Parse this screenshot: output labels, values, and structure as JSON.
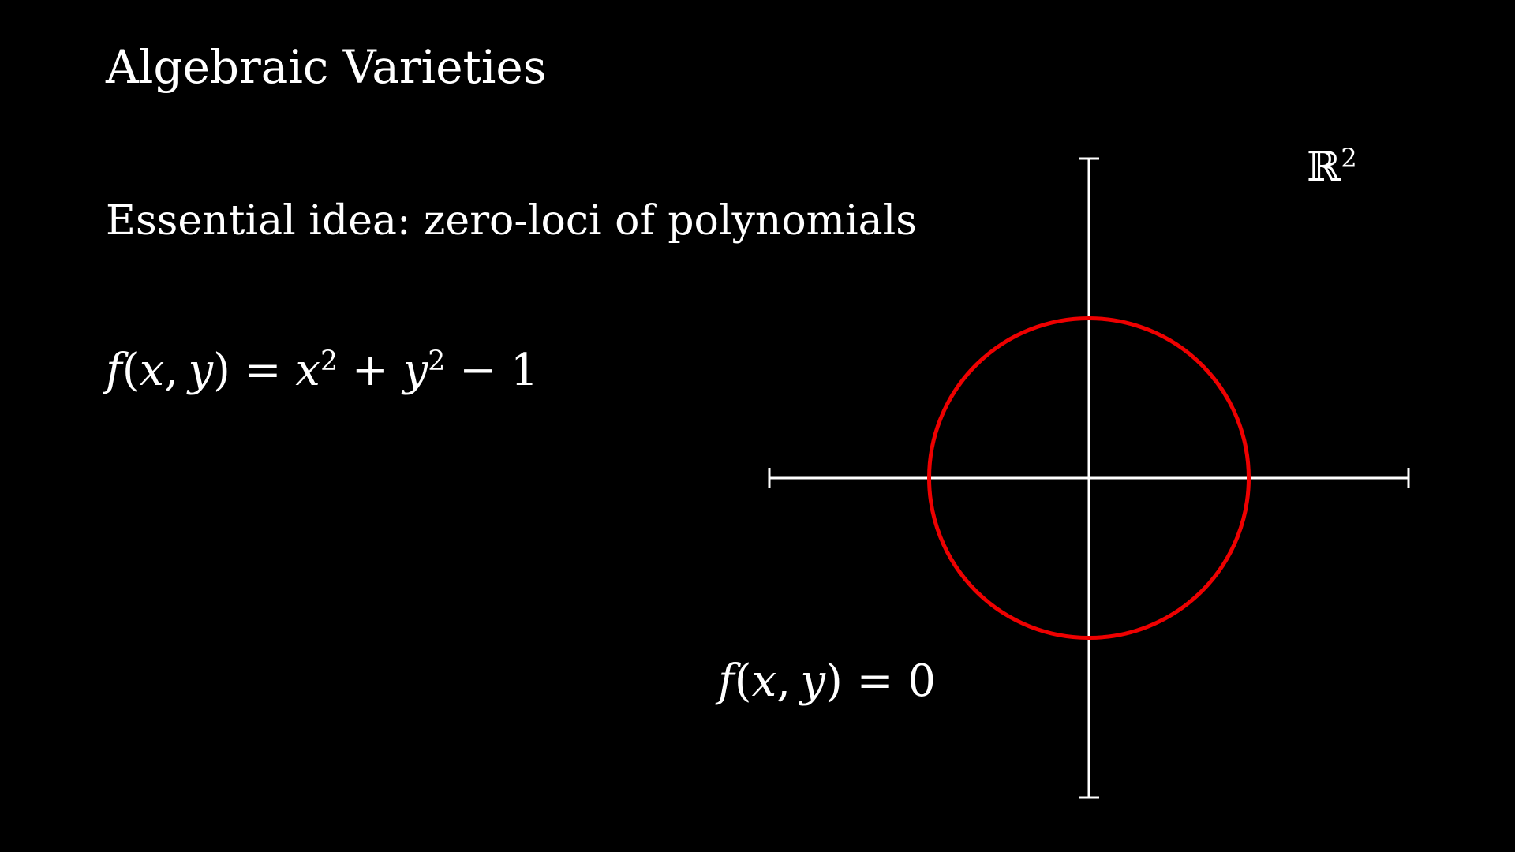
{
  "slide": {
    "title": "Algebraic Varieties",
    "subtitle": "Essential idea: zero-loci of polynomials"
  },
  "equation": {
    "func": "f",
    "open": "(",
    "var_x": "x",
    "comma": ",",
    "var_y": "y",
    "close": ")",
    "eq": "=",
    "term1": "x",
    "exp1": "2",
    "plus": "+",
    "term2": "y",
    "exp2": "2",
    "minus": "−",
    "constant": "1"
  },
  "zero_locus": {
    "func": "f",
    "open": "(",
    "var_x": "x",
    "comma": ",",
    "var_y": "y",
    "close": ")",
    "eq": "=",
    "value": "0"
  },
  "space": {
    "symbol": "ℝ",
    "exponent": "2"
  },
  "chart_data": {
    "type": "line",
    "curve": "circle",
    "equation": "x^2 + y^2 - 1 = 0",
    "center": [
      0,
      0
    ],
    "radius": 1,
    "xlim": [
      -2,
      2
    ],
    "ylim": [
      -2,
      2
    ],
    "axes_color": "#ffffff",
    "curve_color": "#ee0000",
    "grid": false
  }
}
